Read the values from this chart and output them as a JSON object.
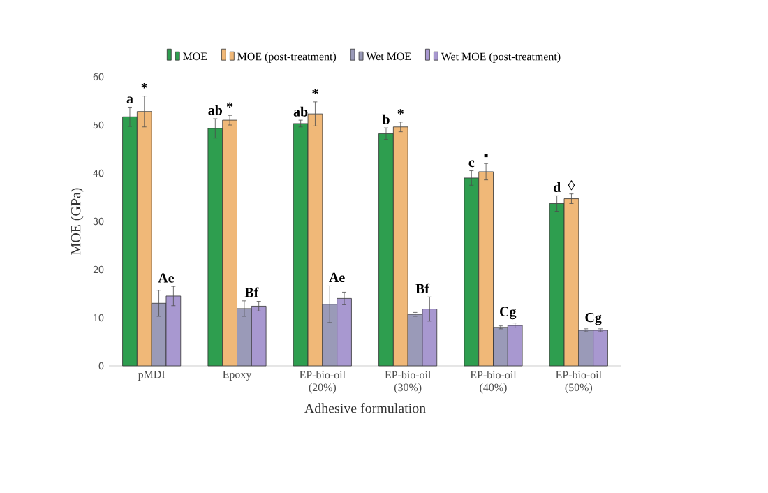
{
  "chart_data": {
    "type": "bar",
    "xlabel": "Adhesive formulation",
    "ylabel": "MOE (GPa)",
    "categories": [
      "pMDI",
      "Epoxy",
      "EP-bio-oil (20%)",
      "EP-bio-oil (30%)",
      "EP-bio-oil (40%)",
      "EP-bio-oil (50%)"
    ],
    "series": [
      {
        "name": "MOE",
        "color": "#2e9e4f",
        "values": [
          51.7,
          49.3,
          50.3,
          48.2,
          39.0,
          33.7
        ],
        "errors": [
          2.0,
          2.0,
          0.7,
          1.2,
          1.5,
          1.6
        ],
        "value_labels": [
          "a",
          "ab",
          "ab",
          "b",
          "c",
          "d"
        ]
      },
      {
        "name": "MOE (post-treatment)",
        "color": "#f0b878",
        "values": [
          52.8,
          51.0,
          52.3,
          49.6,
          40.3,
          34.7
        ],
        "errors": [
          3.2,
          1.0,
          2.5,
          1.0,
          1.7,
          1.0
        ],
        "value_labels": [
          "*",
          "*",
          "*",
          "*",
          "▪",
          "◊"
        ]
      },
      {
        "name": "Wet MOE",
        "color": "#9a9ab8",
        "values": [
          13.0,
          11.9,
          12.8,
          10.7,
          8.0,
          7.4
        ],
        "errors": [
          2.7,
          1.6,
          3.8,
          0.4,
          0.3,
          0.3
        ],
        "value_labels": [
          "Ae",
          "Bf",
          "Ae",
          "Bf",
          "Cg",
          "Cg"
        ]
      },
      {
        "name": "Wet MOE (post-treatment)",
        "color": "#a898d0",
        "values": [
          14.5,
          12.4,
          14.0,
          11.8,
          8.4,
          7.4
        ],
        "errors": [
          2.0,
          1.0,
          1.3,
          2.5,
          0.5,
          0.3
        ]
      }
    ],
    "ylim": [
      0,
      60
    ],
    "yticks": [
      0,
      10,
      20,
      30,
      40,
      50,
      60
    ],
    "legend": "top"
  }
}
